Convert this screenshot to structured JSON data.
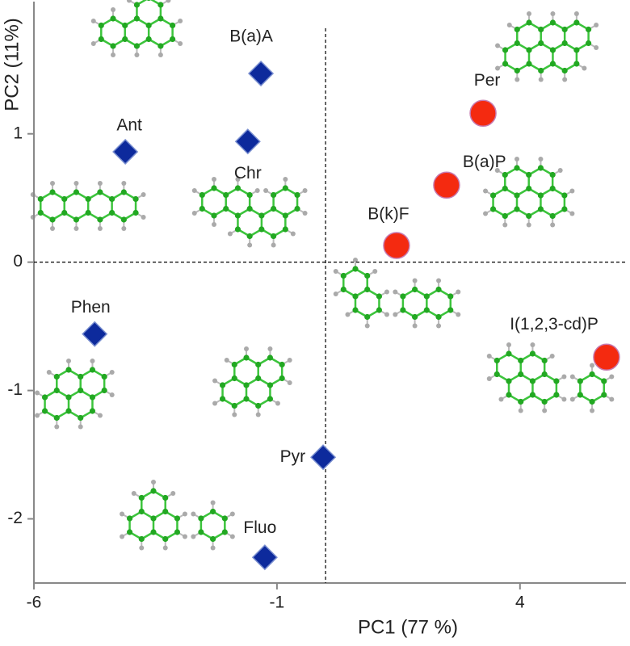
{
  "chart_data": {
    "type": "scatter",
    "x_label": "PC1 (77 %)",
    "y_label": "PC2 (11%)",
    "xlim": [
      -6,
      6.18
    ],
    "ylim": [
      -2.5,
      2.03
    ],
    "xticks": [
      -6,
      -1,
      4
    ],
    "yticks": [
      -2,
      -1,
      0,
      1
    ],
    "hlines": [
      0
    ],
    "vlines": [
      0
    ],
    "series": [
      {
        "color": "#0d2a9c",
        "marker": "diamond",
        "labels": [
          "B(a)A",
          "Chr",
          "Ant",
          "Phen",
          "Pyr",
          "Fluo"
        ],
        "x": [
          -1.33,
          -1.6,
          -4.12,
          -4.75,
          -0.05,
          -1.25
        ],
        "values": [
          1.47,
          0.94,
          0.86,
          -0.56,
          -1.52,
          -2.3
        ]
      },
      {
        "color": "#f42a10",
        "marker": "circle",
        "labels": [
          "Per",
          "B(a)P",
          "B(k)F",
          "I(1,2,3-cd)P"
        ],
        "x": [
          3.24,
          2.49,
          1.46,
          5.78
        ],
        "values": [
          1.16,
          0.6,
          0.13,
          -0.74
        ]
      }
    ]
  }
}
